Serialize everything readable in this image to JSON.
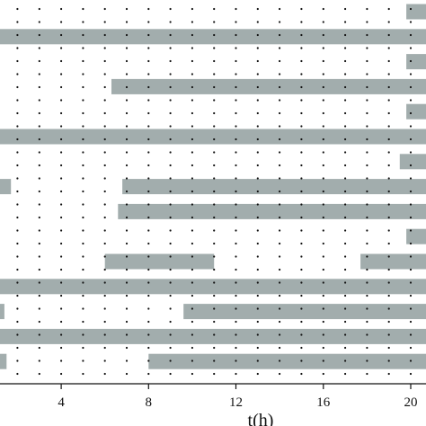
{
  "chart_data": {
    "type": "timeline",
    "xlabel": "t(h)",
    "xlim": [
      1.2,
      20.7
    ],
    "xticks": [
      4,
      8,
      12,
      16,
      20
    ],
    "tick_labels": [
      "4",
      "8",
      "12",
      "16",
      "20"
    ],
    "grid": "dotted",
    "bar_color": "#a2adad",
    "rows": [
      {
        "intervals": [
          [
            19.8,
            20.7
          ]
        ]
      },
      {
        "intervals": [
          [
            1.2,
            20.7
          ]
        ]
      },
      {
        "intervals": [
          [
            19.8,
            20.7
          ]
        ]
      },
      {
        "intervals": [
          [
            6.3,
            20.7
          ]
        ]
      },
      {
        "intervals": [
          [
            19.8,
            20.7
          ]
        ]
      },
      {
        "intervals": [
          [
            1.2,
            20.7
          ]
        ]
      },
      {
        "intervals": [
          [
            19.5,
            20.7
          ]
        ]
      },
      {
        "intervals": [
          [
            1.2,
            1.7
          ],
          [
            6.8,
            20.7
          ]
        ]
      },
      {
        "intervals": [
          [
            6.6,
            20.7
          ]
        ]
      },
      {
        "intervals": [
          [
            19.8,
            20.7
          ]
        ]
      },
      {
        "intervals": [
          [
            6.0,
            11.0
          ],
          [
            17.7,
            20.7
          ]
        ]
      },
      {
        "intervals": [
          [
            1.2,
            20.7
          ]
        ]
      },
      {
        "intervals": [
          [
            1.2,
            1.4
          ],
          [
            9.6,
            20.7
          ]
        ]
      },
      {
        "intervals": [
          [
            1.2,
            20.7
          ]
        ]
      },
      {
        "intervals": [
          [
            1.2,
            1.5
          ],
          [
            8.0,
            20.7
          ]
        ]
      }
    ]
  }
}
